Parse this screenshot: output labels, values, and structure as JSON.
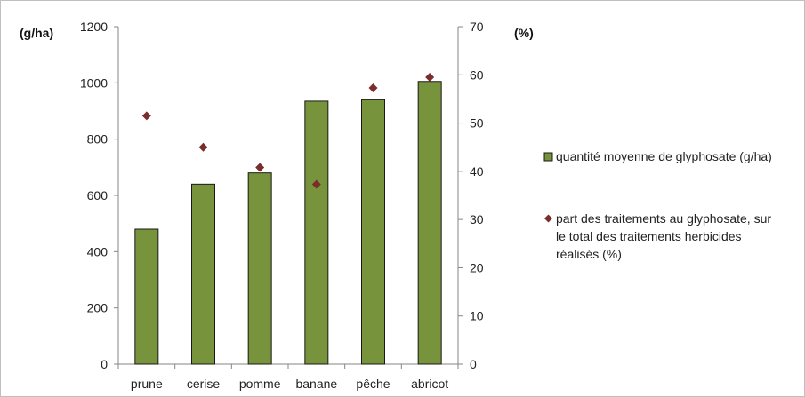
{
  "chart_data": {
    "type": "bar",
    "categories": [
      "prune",
      "cerise",
      "pomme",
      "banane",
      "pêche",
      "abricot"
    ],
    "series": [
      {
        "name": "quantité moyenne de glyphosate (g/ha)",
        "type": "bar",
        "axis": "left",
        "values": [
          480,
          640,
          680,
          935,
          940,
          1005
        ],
        "color": "#77933c"
      },
      {
        "name": "part des traitements au glyphosate, sur le total des traitements herbicides réalisés (%)",
        "legend_lines": [
          "part des traitements au glyphosate, sur",
          "le total des traitements herbicides",
          "réalisés (%)"
        ],
        "type": "scatter",
        "axis": "right",
        "values": [
          51.5,
          45,
          40.8,
          37.3,
          57.3,
          59.5
        ],
        "color": "#7b2c2c"
      }
    ],
    "y_left": {
      "label": "(g/ha)",
      "ylim": [
        0,
        1200
      ],
      "ticks": [
        "0",
        "200",
        "400",
        "600",
        "800",
        "1000",
        "1200"
      ]
    },
    "y_right": {
      "label": "(%)",
      "ylim": [
        0,
        70
      ],
      "ticks": [
        "0",
        "10",
        "20",
        "30",
        "40",
        "50",
        "60",
        "70"
      ]
    },
    "grid": false,
    "legend_position": "right"
  }
}
